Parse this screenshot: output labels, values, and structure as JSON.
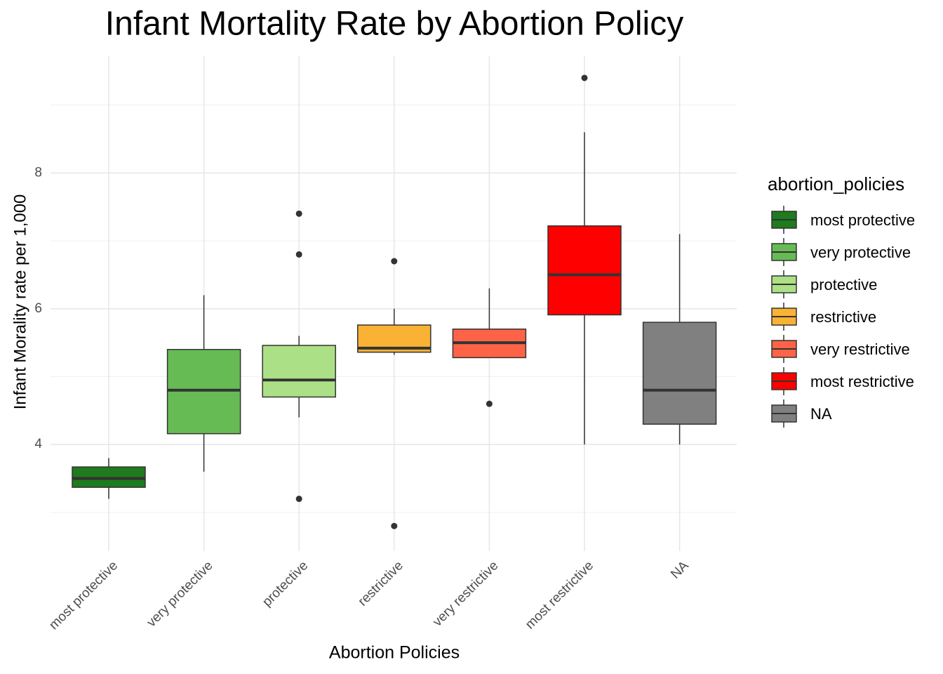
{
  "chart_data": {
    "type": "box",
    "title": "Infant Mortality Rate by Abortion Policy",
    "x_label": "Abortion Policies",
    "y_label": "Infant Morality rate per 1,000",
    "legend_title": "abortion_policies",
    "legend_position": "right",
    "categories": [
      "most protective",
      "very protective",
      "protective",
      "restrictive",
      "very restrictive",
      "most restrictive",
      "NA"
    ],
    "colors": [
      "#1e7b1e",
      "#66bb55",
      "#ace086",
      "#f9b233",
      "#ff6347",
      "#ff0000",
      "#808080"
    ],
    "boxes": [
      {
        "min": 3.2,
        "q1": 3.37,
        "median": 3.5,
        "q3": 3.67,
        "max": 3.8,
        "outliers": []
      },
      {
        "min": 3.6,
        "q1": 4.16,
        "median": 4.8,
        "q3": 5.4,
        "max": 6.2,
        "outliers": []
      },
      {
        "min": 4.4,
        "q1": 4.7,
        "median": 4.95,
        "q3": 5.46,
        "max": 5.6,
        "outliers": [
          7.4,
          6.8,
          3.2
        ]
      },
      {
        "min": 5.32,
        "q1": 5.36,
        "median": 5.42,
        "q3": 5.76,
        "max": 6.0,
        "outliers": [
          6.7,
          2.8
        ]
      },
      {
        "min": 5.28,
        "q1": 5.28,
        "median": 5.5,
        "q3": 5.7,
        "max": 6.3,
        "outliers": [
          4.6
        ]
      },
      {
        "min": 4.0,
        "q1": 5.91,
        "median": 6.5,
        "q3": 7.22,
        "max": 8.6,
        "outliers": [
          9.4
        ]
      },
      {
        "min": 4.0,
        "q1": 4.3,
        "median": 4.8,
        "q3": 5.8,
        "max": 7.1,
        "outliers": []
      }
    ],
    "ylim": [
      2.43,
      9.72
    ],
    "yticks": [
      4,
      6,
      8
    ],
    "y_minor_ticks": [
      3,
      5,
      7,
      9
    ],
    "grid": true
  }
}
